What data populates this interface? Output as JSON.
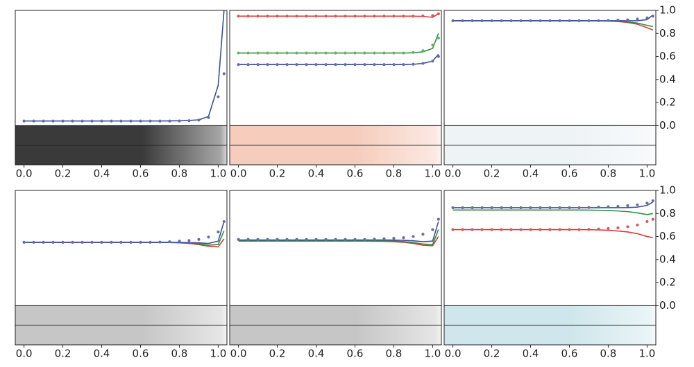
{
  "chart_data": [
    {
      "type": "line",
      "strip_color": "#3a3a3a",
      "x": [
        0,
        0.05,
        0.1,
        0.15,
        0.2,
        0.25,
        0.3,
        0.35,
        0.4,
        0.45,
        0.5,
        0.55,
        0.6,
        0.65,
        0.7,
        0.75,
        0.8,
        0.85,
        0.9,
        0.95,
        1.0,
        1.03
      ],
      "xlim": [
        -0.045,
        1.045
      ],
      "ylim": [
        -0.34,
        1.0
      ],
      "xticks": [
        {
          "value": 0,
          "label": "0.0"
        },
        {
          "value": 0.2,
          "label": "0.2"
        },
        {
          "value": 0.4,
          "label": "0.4"
        },
        {
          "value": 0.6,
          "label": "0.6"
        },
        {
          "value": 0.8,
          "label": "0.8"
        },
        {
          "value": 1,
          "label": "1.0"
        }
      ],
      "series": [
        {
          "style": "line",
          "color": "#3a4f9c",
          "values": [
            0.04,
            0.04,
            0.04,
            0.04,
            0.04,
            0.04,
            0.04,
            0.04,
            0.04,
            0.04,
            0.04,
            0.04,
            0.04,
            0.04,
            0.04,
            0.041,
            0.042,
            0.045,
            0.05,
            0.08,
            0.35,
            1.0
          ]
        },
        {
          "style": "dots",
          "color": "#6b6aa8",
          "values": [
            0.04,
            0.04,
            0.04,
            0.04,
            0.04,
            0.04,
            0.04,
            0.04,
            0.04,
            0.04,
            0.04,
            0.04,
            0.04,
            0.04,
            0.04,
            0.04,
            0.041,
            0.043,
            0.048,
            0.07,
            0.25,
            0.45
          ]
        }
      ]
    },
    {
      "type": "line",
      "strip_color": "#f6cdbd",
      "x": [
        0,
        0.05,
        0.1,
        0.15,
        0.2,
        0.25,
        0.3,
        0.35,
        0.4,
        0.45,
        0.5,
        0.55,
        0.6,
        0.65,
        0.7,
        0.75,
        0.8,
        0.85,
        0.9,
        0.95,
        1.0,
        1.03
      ],
      "xlim": [
        -0.045,
        1.045
      ],
      "ylim": [
        -0.34,
        1.0
      ],
      "xticks": [
        {
          "value": 0,
          "label": "0.0"
        },
        {
          "value": 0.2,
          "label": "0.2"
        },
        {
          "value": 0.4,
          "label": "0.4"
        },
        {
          "value": 0.6,
          "label": "0.6"
        },
        {
          "value": 0.8,
          "label": "0.8"
        },
        {
          "value": 1,
          "label": "1.0"
        }
      ],
      "series": [
        {
          "style": "line",
          "color": "#d63a3a",
          "values": [
            0.95,
            0.95,
            0.95,
            0.95,
            0.95,
            0.95,
            0.95,
            0.95,
            0.95,
            0.95,
            0.95,
            0.95,
            0.95,
            0.95,
            0.95,
            0.95,
            0.95,
            0.95,
            0.95,
            0.948,
            0.94,
            0.97
          ]
        },
        {
          "style": "line",
          "color": "#2e9040",
          "values": [
            0.63,
            0.63,
            0.63,
            0.63,
            0.63,
            0.63,
            0.63,
            0.63,
            0.63,
            0.63,
            0.63,
            0.63,
            0.63,
            0.63,
            0.63,
            0.63,
            0.63,
            0.63,
            0.632,
            0.64,
            0.67,
            0.8
          ]
        },
        {
          "style": "line",
          "color": "#3a4f9c",
          "values": [
            0.53,
            0.53,
            0.53,
            0.53,
            0.53,
            0.53,
            0.53,
            0.53,
            0.53,
            0.53,
            0.53,
            0.53,
            0.53,
            0.53,
            0.53,
            0.53,
            0.53,
            0.53,
            0.532,
            0.54,
            0.56,
            0.62
          ]
        },
        {
          "style": "dots",
          "color": "#e05555",
          "values": [
            0.95,
            0.95,
            0.95,
            0.95,
            0.95,
            0.95,
            0.95,
            0.95,
            0.95,
            0.95,
            0.95,
            0.95,
            0.95,
            0.95,
            0.95,
            0.95,
            0.95,
            0.95,
            0.95,
            0.952,
            0.955,
            0.97
          ]
        },
        {
          "style": "dots",
          "color": "#5cb85c",
          "values": [
            0.63,
            0.63,
            0.63,
            0.63,
            0.63,
            0.63,
            0.63,
            0.63,
            0.63,
            0.63,
            0.63,
            0.63,
            0.63,
            0.63,
            0.63,
            0.63,
            0.63,
            0.63,
            0.635,
            0.65,
            0.7,
            0.76
          ]
        },
        {
          "style": "dots",
          "color": "#6b6aa8",
          "values": [
            0.53,
            0.53,
            0.53,
            0.53,
            0.53,
            0.53,
            0.53,
            0.53,
            0.53,
            0.53,
            0.53,
            0.53,
            0.53,
            0.53,
            0.53,
            0.53,
            0.53,
            0.53,
            0.533,
            0.54,
            0.56,
            0.6
          ]
        }
      ]
    },
    {
      "type": "line",
      "strip_color": "#eef3f6",
      "x": [
        0,
        0.05,
        0.1,
        0.15,
        0.2,
        0.25,
        0.3,
        0.35,
        0.4,
        0.45,
        0.5,
        0.55,
        0.6,
        0.65,
        0.7,
        0.75,
        0.8,
        0.85,
        0.9,
        0.95,
        1.0,
        1.03
      ],
      "xlim": [
        -0.045,
        1.045
      ],
      "ylim": [
        -0.34,
        1.0
      ],
      "xticks": [
        {
          "value": 0,
          "label": "0.0"
        },
        {
          "value": 0.2,
          "label": "0.2"
        },
        {
          "value": 0.4,
          "label": "0.4"
        },
        {
          "value": 0.6,
          "label": "0.6"
        },
        {
          "value": 0.8,
          "label": "0.8"
        },
        {
          "value": 1,
          "label": "1.0"
        }
      ],
      "yticks": [
        {
          "value": 0,
          "label": "0.0"
        },
        {
          "value": 0.2,
          "label": "0.2"
        },
        {
          "value": 0.4,
          "label": "0.4"
        },
        {
          "value": 0.6,
          "label": "0.6"
        },
        {
          "value": 0.8,
          "label": "0.8"
        },
        {
          "value": 1,
          "label": "1.0"
        }
      ],
      "series": [
        {
          "style": "line",
          "color": "#d63a3a",
          "values": [
            0.91,
            0.91,
            0.91,
            0.91,
            0.91,
            0.91,
            0.91,
            0.91,
            0.91,
            0.91,
            0.91,
            0.91,
            0.91,
            0.91,
            0.91,
            0.909,
            0.907,
            0.903,
            0.895,
            0.88,
            0.85,
            0.83
          ]
        },
        {
          "style": "line",
          "color": "#2e9040",
          "values": [
            0.91,
            0.91,
            0.91,
            0.91,
            0.91,
            0.91,
            0.91,
            0.91,
            0.91,
            0.91,
            0.91,
            0.91,
            0.91,
            0.91,
            0.91,
            0.909,
            0.908,
            0.905,
            0.9,
            0.89,
            0.87,
            0.86
          ]
        },
        {
          "style": "line",
          "color": "#3a4f9c",
          "values": [
            0.91,
            0.91,
            0.91,
            0.91,
            0.91,
            0.91,
            0.91,
            0.91,
            0.91,
            0.91,
            0.91,
            0.91,
            0.91,
            0.91,
            0.91,
            0.91,
            0.91,
            0.91,
            0.91,
            0.91,
            0.92,
            0.96
          ]
        },
        {
          "style": "dots",
          "color": "#6b6aa8",
          "values": [
            0.91,
            0.91,
            0.91,
            0.91,
            0.91,
            0.91,
            0.91,
            0.91,
            0.91,
            0.91,
            0.91,
            0.91,
            0.91,
            0.91,
            0.91,
            0.91,
            0.912,
            0.915,
            0.918,
            0.925,
            0.935,
            0.95
          ]
        }
      ]
    },
    {
      "type": "line",
      "strip_color": "#c6c6c6",
      "x": [
        0,
        0.05,
        0.1,
        0.15,
        0.2,
        0.25,
        0.3,
        0.35,
        0.4,
        0.45,
        0.5,
        0.55,
        0.6,
        0.65,
        0.7,
        0.75,
        0.8,
        0.85,
        0.9,
        0.95,
        1.0,
        1.03
      ],
      "xlim": [
        -0.045,
        1.045
      ],
      "ylim": [
        -0.34,
        1.0
      ],
      "xticks": [
        {
          "value": 0,
          "label": "0.0"
        },
        {
          "value": 0.2,
          "label": "0.2"
        },
        {
          "value": 0.4,
          "label": "0.4"
        },
        {
          "value": 0.6,
          "label": "0.6"
        },
        {
          "value": 0.8,
          "label": "0.8"
        },
        {
          "value": 1,
          "label": "1.0"
        }
      ],
      "series": [
        {
          "style": "line",
          "color": "#d63a3a",
          "values": [
            0.55,
            0.55,
            0.55,
            0.55,
            0.55,
            0.55,
            0.55,
            0.55,
            0.55,
            0.55,
            0.55,
            0.55,
            0.55,
            0.55,
            0.549,
            0.548,
            0.545,
            0.54,
            0.53,
            0.515,
            0.51,
            0.58
          ]
        },
        {
          "style": "line",
          "color": "#2e9040",
          "values": [
            0.55,
            0.55,
            0.55,
            0.55,
            0.55,
            0.55,
            0.55,
            0.55,
            0.55,
            0.55,
            0.55,
            0.55,
            0.55,
            0.55,
            0.55,
            0.549,
            0.547,
            0.543,
            0.537,
            0.525,
            0.53,
            0.65
          ]
        },
        {
          "style": "line",
          "color": "#3a4f9c",
          "values": [
            0.55,
            0.55,
            0.55,
            0.55,
            0.55,
            0.55,
            0.55,
            0.55,
            0.55,
            0.55,
            0.55,
            0.55,
            0.55,
            0.55,
            0.55,
            0.55,
            0.549,
            0.547,
            0.545,
            0.54,
            0.56,
            0.73
          ]
        },
        {
          "style": "dots",
          "color": "#6b6aa8",
          "values": [
            0.55,
            0.55,
            0.55,
            0.55,
            0.55,
            0.55,
            0.55,
            0.55,
            0.55,
            0.55,
            0.55,
            0.55,
            0.55,
            0.55,
            0.552,
            0.555,
            0.56,
            0.565,
            0.575,
            0.595,
            0.64,
            0.73
          ]
        }
      ]
    },
    {
      "type": "line",
      "strip_color": "#c6c6c6",
      "x": [
        0,
        0.05,
        0.1,
        0.15,
        0.2,
        0.25,
        0.3,
        0.35,
        0.4,
        0.45,
        0.5,
        0.55,
        0.6,
        0.65,
        0.7,
        0.75,
        0.8,
        0.85,
        0.9,
        0.95,
        1.0,
        1.03
      ],
      "xlim": [
        -0.045,
        1.045
      ],
      "ylim": [
        -0.34,
        1.0
      ],
      "xticks": [
        {
          "value": 0,
          "label": "0.0"
        },
        {
          "value": 0.2,
          "label": "0.2"
        },
        {
          "value": 0.4,
          "label": "0.4"
        },
        {
          "value": 0.6,
          "label": "0.6"
        },
        {
          "value": 0.8,
          "label": "0.8"
        },
        {
          "value": 1,
          "label": "1.0"
        }
      ],
      "series": [
        {
          "style": "line",
          "color": "#d63a3a",
          "values": [
            0.56,
            0.56,
            0.56,
            0.56,
            0.56,
            0.56,
            0.56,
            0.56,
            0.56,
            0.56,
            0.56,
            0.56,
            0.56,
            0.56,
            0.559,
            0.558,
            0.555,
            0.55,
            0.54,
            0.525,
            0.52,
            0.6
          ]
        },
        {
          "style": "line",
          "color": "#2e9040",
          "values": [
            0.565,
            0.565,
            0.565,
            0.565,
            0.565,
            0.565,
            0.565,
            0.565,
            0.565,
            0.565,
            0.565,
            0.565,
            0.565,
            0.565,
            0.564,
            0.563,
            0.56,
            0.556,
            0.548,
            0.535,
            0.53,
            0.66
          ]
        },
        {
          "style": "line",
          "color": "#3a4f9c",
          "values": [
            0.57,
            0.57,
            0.57,
            0.57,
            0.57,
            0.57,
            0.57,
            0.57,
            0.57,
            0.57,
            0.57,
            0.57,
            0.57,
            0.57,
            0.57,
            0.57,
            0.569,
            0.567,
            0.563,
            0.555,
            0.56,
            0.73
          ]
        },
        {
          "style": "dots",
          "color": "#6b6aa8",
          "values": [
            0.575,
            0.575,
            0.575,
            0.575,
            0.575,
            0.575,
            0.575,
            0.575,
            0.575,
            0.575,
            0.575,
            0.575,
            0.575,
            0.575,
            0.577,
            0.58,
            0.585,
            0.59,
            0.6,
            0.62,
            0.66,
            0.75
          ]
        }
      ]
    },
    {
      "type": "line",
      "strip_color": "#cfe7ec",
      "x": [
        0,
        0.05,
        0.1,
        0.15,
        0.2,
        0.25,
        0.3,
        0.35,
        0.4,
        0.45,
        0.5,
        0.55,
        0.6,
        0.65,
        0.7,
        0.75,
        0.8,
        0.85,
        0.9,
        0.95,
        1.0,
        1.03
      ],
      "xlim": [
        -0.045,
        1.045
      ],
      "ylim": [
        -0.34,
        1.0
      ],
      "xticks": [
        {
          "value": 0,
          "label": "0.0"
        },
        {
          "value": 0.2,
          "label": "0.2"
        },
        {
          "value": 0.4,
          "label": "0.4"
        },
        {
          "value": 0.6,
          "label": "0.6"
        },
        {
          "value": 0.8,
          "label": "0.8"
        },
        {
          "value": 1,
          "label": "1.0"
        }
      ],
      "yticks": [
        {
          "value": 0,
          "label": "0.0"
        },
        {
          "value": 0.2,
          "label": "0.2"
        },
        {
          "value": 0.4,
          "label": "0.4"
        },
        {
          "value": 0.6,
          "label": "0.6"
        },
        {
          "value": 0.8,
          "label": "0.8"
        },
        {
          "value": 1,
          "label": "1.0"
        }
      ],
      "series": [
        {
          "style": "line",
          "color": "#d63a3a",
          "values": [
            0.66,
            0.66,
            0.66,
            0.66,
            0.66,
            0.66,
            0.66,
            0.66,
            0.66,
            0.66,
            0.66,
            0.66,
            0.66,
            0.66,
            0.659,
            0.657,
            0.654,
            0.648,
            0.64,
            0.625,
            0.6,
            0.59
          ]
        },
        {
          "style": "line",
          "color": "#2e9040",
          "values": [
            0.83,
            0.83,
            0.83,
            0.83,
            0.83,
            0.83,
            0.83,
            0.83,
            0.83,
            0.83,
            0.83,
            0.83,
            0.83,
            0.83,
            0.829,
            0.828,
            0.826,
            0.822,
            0.816,
            0.805,
            0.79,
            0.8
          ]
        },
        {
          "style": "line",
          "color": "#3a4f9c",
          "values": [
            0.85,
            0.85,
            0.85,
            0.85,
            0.85,
            0.85,
            0.85,
            0.85,
            0.85,
            0.85,
            0.85,
            0.85,
            0.85,
            0.85,
            0.85,
            0.85,
            0.85,
            0.85,
            0.851,
            0.855,
            0.87,
            0.9
          ]
        },
        {
          "style": "dots",
          "color": "#e05555",
          "values": [
            0.66,
            0.66,
            0.66,
            0.66,
            0.66,
            0.66,
            0.66,
            0.66,
            0.66,
            0.66,
            0.66,
            0.66,
            0.66,
            0.66,
            0.662,
            0.665,
            0.67,
            0.675,
            0.685,
            0.7,
            0.73,
            0.75
          ]
        },
        {
          "style": "dots",
          "color": "#6b6aa8",
          "values": [
            0.85,
            0.85,
            0.85,
            0.85,
            0.85,
            0.85,
            0.85,
            0.85,
            0.85,
            0.85,
            0.85,
            0.85,
            0.85,
            0.85,
            0.852,
            0.855,
            0.858,
            0.862,
            0.868,
            0.875,
            0.89,
            0.91
          ]
        }
      ]
    }
  ]
}
